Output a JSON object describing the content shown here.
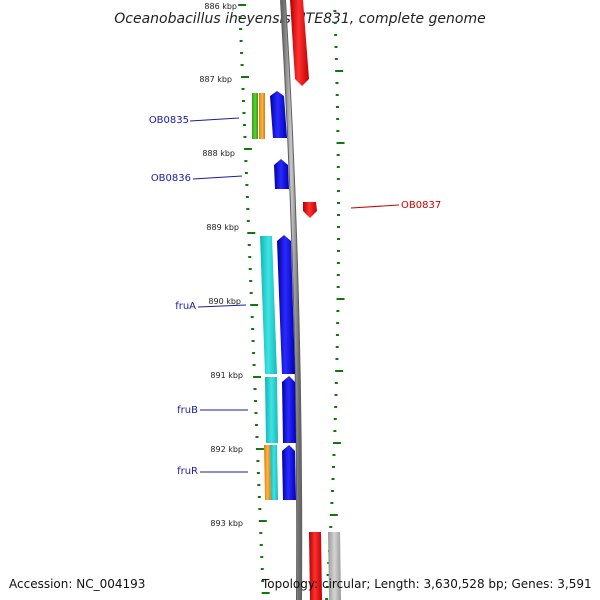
{
  "title": "Oceanobacillus iheyensis HTE831, complete genome",
  "footer": {
    "accession": "Accession: NC_004193",
    "topology": "Topology: circular; Length: 3,630,528 bp; Genes: 3,591"
  },
  "ruler": [
    "886 kbp",
    "887 kbp",
    "888 kbp",
    "889 kbp",
    "890 kbp",
    "891 kbp",
    "892 kbp",
    "893 kbp"
  ],
  "gene_labels": [
    {
      "text": "OB0835",
      "color": "#1a1aaa"
    },
    {
      "text": "OB0836",
      "color": "#1a1aaa"
    },
    {
      "text": "OB0837",
      "color": "#cc0000"
    },
    {
      "text": "fruA",
      "color": "#1a1aaa"
    },
    {
      "text": "fruB",
      "color": "#1a1aaa"
    },
    {
      "text": "fruR",
      "color": "#1a1aaa"
    }
  ],
  "colors": {
    "forward_gene": "#0000ee",
    "reverse_gene": "#ee0000",
    "cog_green": "#44bb22",
    "cog_orange": "#f39a1c",
    "cog_cyan": "#22cccc",
    "cog_grey": "#b4b4b4",
    "backbone": "#888888",
    "tick": "#117711"
  }
}
